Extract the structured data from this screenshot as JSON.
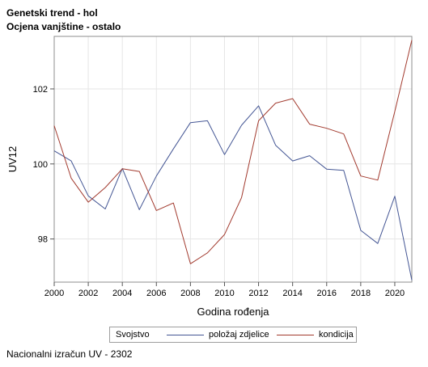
{
  "titles": {
    "line1": "Genetski trend - hol",
    "line2": "Ocjena vanjštine - ostalo"
  },
  "footnote": "Nacionalni izračun UV - 2302",
  "chart_data": {
    "type": "line",
    "xlabel": "Godina rođenja",
    "ylabel": "UV12",
    "x": [
      2000,
      2001,
      2002,
      2003,
      2004,
      2005,
      2006,
      2007,
      2008,
      2009,
      2010,
      2011,
      2012,
      2013,
      2014,
      2015,
      2016,
      2017,
      2018,
      2019,
      2020,
      2021
    ],
    "xlim": [
      2000,
      2021
    ],
    "ylim": [
      96.85,
      103.4
    ],
    "x_ticks": [
      2000,
      2002,
      2004,
      2006,
      2008,
      2010,
      2012,
      2014,
      2016,
      2018,
      2020
    ],
    "y_ticks": [
      98,
      100,
      102
    ],
    "grid": true,
    "legend": {
      "title": "Svojstvo",
      "placement": "bottom"
    },
    "series": [
      {
        "name": "položaj zdjelice",
        "color": "#445694",
        "values": [
          100.35,
          100.08,
          99.15,
          98.8,
          99.88,
          98.78,
          99.68,
          100.4,
          101.1,
          101.15,
          100.25,
          101.03,
          101.55,
          100.5,
          100.08,
          100.22,
          99.86,
          99.83,
          98.23,
          97.88,
          99.14,
          96.9
        ]
      },
      {
        "name": "kondicija",
        "color": "#a23a2e",
        "values": [
          101.02,
          99.62,
          98.98,
          99.37,
          99.87,
          99.8,
          98.76,
          98.96,
          97.34,
          97.63,
          98.12,
          99.1,
          101.15,
          101.62,
          101.74,
          101.06,
          100.95,
          100.8,
          99.68,
          99.57,
          101.4,
          103.3
        ]
      }
    ]
  }
}
